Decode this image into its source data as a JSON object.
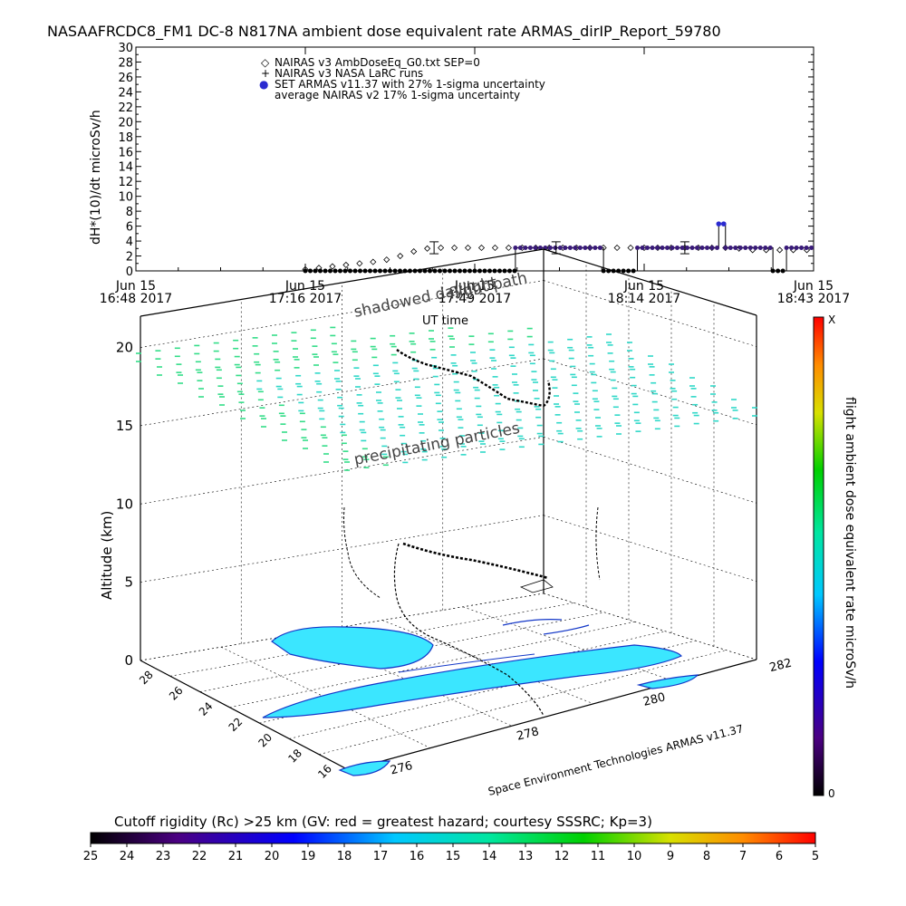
{
  "title": "NASAAFRCDC8_FM1 DC-8   N817NA ambient dose equivalent rate ARMAS_dirIP_Report_59780",
  "colors": {
    "series_points": "#3a1b7a",
    "series_highlight": "#2b2bd0",
    "dose_field": "#3be6ff",
    "particle_marks": "#33dd88",
    "contour": "#1438c8"
  },
  "chart_data": [
    {
      "type": "line",
      "ylabel": "dH*(10)/dt microSv/h",
      "xlabel": "UT time",
      "ylim": [
        0,
        30
      ],
      "yticks": [
        "0",
        "2",
        "4",
        "6",
        "8",
        "10",
        "12",
        "14",
        "16",
        "18",
        "20",
        "22",
        "24",
        "26",
        "28",
        "30"
      ],
      "xticks": [
        {
          "line1": "Jun 15",
          "line2": "16:48 2017"
        },
        {
          "line1": "Jun 15",
          "line2": "17:16 2017"
        },
        {
          "line1": "Jun 15",
          "line2": "17:49 2017"
        },
        {
          "line1": "Jun 15",
          "line2": "18:14 2017"
        },
        {
          "line1": "Jun 15",
          "line2": "18:43 2017"
        }
      ],
      "legend": [
        {
          "symbol": "◇",
          "label": "NAIRAS v3 AmbDoseEq_G0.txt SEP=0"
        },
        {
          "symbol": "+",
          "label": "NAIRAS v3 NASA LaRC runs"
        },
        {
          "symbol": "●",
          "label": "SET ARMAS v11.37 with 27% 1-sigma uncertainty"
        },
        {
          "symbol": "",
          "label": "average NAIRAS v2 17% 1-sigma uncertainty"
        }
      ],
      "series": [
        {
          "name": "NAIRAS v3 AmbDoseEq_G0.txt SEP=0",
          "x_fraction": [
            0.25,
            0.27,
            0.29,
            0.31,
            0.33,
            0.35,
            0.37,
            0.39,
            0.41,
            0.43,
            0.45,
            0.47,
            0.49,
            0.51,
            0.53,
            0.55,
            0.57,
            0.59,
            0.61,
            0.63,
            0.65,
            0.67,
            0.69,
            0.71,
            0.73,
            0.75,
            0.77,
            0.79,
            0.81,
            0.83,
            0.85,
            0.87,
            0.89,
            0.91,
            0.93,
            0.95,
            0.97,
            0.99
          ],
          "values": [
            0.2,
            0.4,
            0.6,
            0.8,
            1.0,
            1.2,
            1.5,
            2.0,
            2.6,
            3.0,
            3.1,
            3.1,
            3.1,
            3.1,
            3.1,
            3.1,
            3.1,
            3.1,
            3.1,
            3.1,
            3.1,
            3.1,
            3.1,
            3.1,
            3.1,
            3.1,
            3.1,
            3.1,
            3.1,
            3.1,
            3.1,
            3.1,
            3.0,
            2.8,
            2.8,
            2.8,
            2.8,
            2.8
          ]
        },
        {
          "name": "SET ARMAS v11.37 with 27% 1-sigma uncertainty",
          "segments": [
            {
              "x0": 0.25,
              "x1": 0.56,
              "value": 0.0
            },
            {
              "x0": 0.56,
              "x1": 0.69,
              "value": 3.1
            },
            {
              "x0": 0.69,
              "x1": 0.74,
              "value": 0.0
            },
            {
              "x0": 0.74,
              "x1": 0.86,
              "value": 3.1
            },
            {
              "x0": 0.86,
              "x1": 0.87,
              "value": 6.3
            },
            {
              "x0": 0.87,
              "x1": 0.94,
              "value": 3.1
            },
            {
              "x0": 0.94,
              "x1": 0.96,
              "value": 0.0
            },
            {
              "x0": 0.96,
              "x1": 1.0,
              "value": 3.1
            }
          ]
        }
      ],
      "error_bars": [
        {
          "x_fraction": 0.44,
          "value": 3.1,
          "err": 0.8
        },
        {
          "x_fraction": 0.62,
          "value": 3.1,
          "err": 0.8
        },
        {
          "x_fraction": 0.81,
          "value": 3.1,
          "err": 0.8
        }
      ]
    },
    {
      "type": "surface3d",
      "zlabel": "Altitude (km)",
      "zticks": [
        "0",
        "5",
        "10",
        "15",
        "20"
      ],
      "lat_ticks": [
        "28",
        "26",
        "24",
        "22",
        "20",
        "18",
        "16"
      ],
      "lon_ticks": [
        "276",
        "278",
        "280",
        "282"
      ],
      "annotations": [
        "shadowed daylight",
        "flight path",
        "precipitating particles"
      ],
      "credit": "Space Environment Technologies ARMAS v11.37",
      "colorbar": {
        "label": "flight ambient dose equivalent rate microSv/h",
        "top_label": "X",
        "bottom_label": "0"
      }
    }
  ],
  "rigidity_bar": {
    "title": "Cutoff rigidity (Rc) >25 km (GV: red = greatest hazard; courtesy SSSRC; Kp=3)",
    "ticks": [
      "25",
      "24",
      "23",
      "22",
      "21",
      "20",
      "19",
      "18",
      "17",
      "16",
      "15",
      "14",
      "13",
      "12",
      "11",
      "10",
      "9",
      "8",
      "7",
      "6",
      "5"
    ]
  }
}
